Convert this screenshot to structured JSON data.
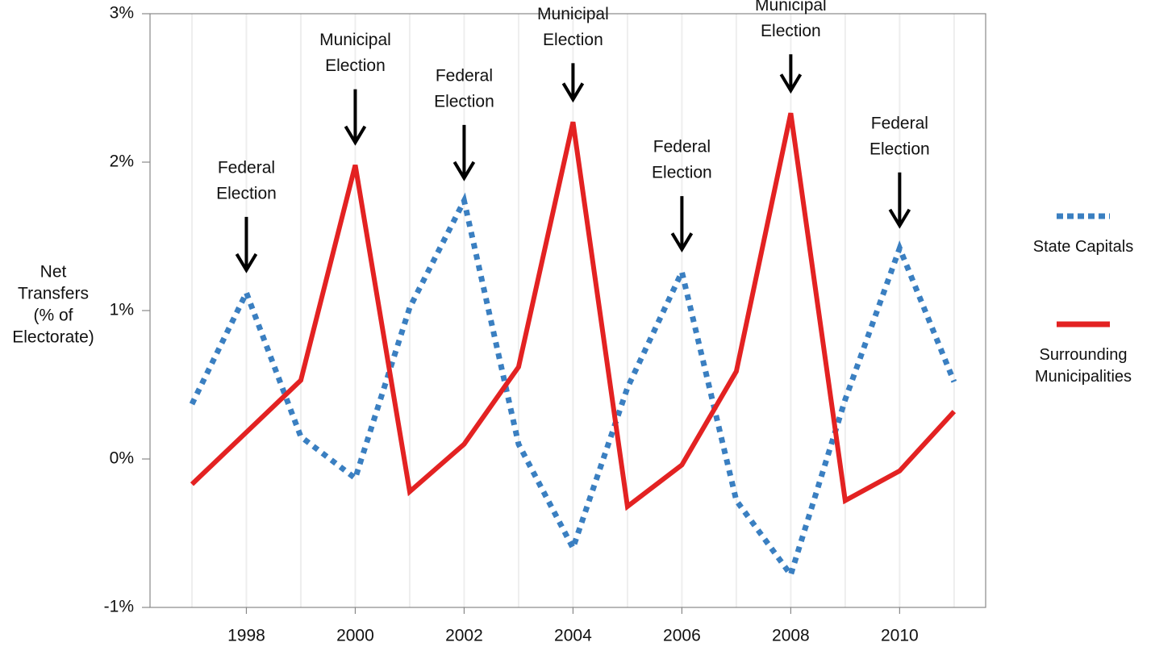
{
  "chart_data": {
    "type": "line",
    "ylabel": [
      "Net",
      "Transfers",
      "(% of",
      "Electorate)"
    ],
    "x": [
      1997,
      1998,
      1999,
      2000,
      2001,
      2002,
      2003,
      2004,
      2005,
      2006,
      2007,
      2008,
      2009,
      2010,
      2011
    ],
    "series": [
      {
        "name": "State Capitals",
        "color": "#3a7fc1",
        "dashed": true,
        "values": [
          0.37,
          1.12,
          0.15,
          -0.13,
          1.02,
          1.74,
          0.1,
          -0.6,
          0.48,
          1.26,
          -0.28,
          -0.78,
          0.4,
          1.42,
          0.52
        ]
      },
      {
        "name": "Surrounding Municipalities",
        "color": "#e32222",
        "dashed": false,
        "values": [
          -0.17,
          0.18,
          0.53,
          1.98,
          -0.22,
          0.1,
          0.62,
          2.27,
          -0.32,
          -0.04,
          0.59,
          2.33,
          -0.28,
          -0.08,
          0.32
        ]
      }
    ],
    "annotations": [
      {
        "x": 1998,
        "lines": [
          "Federal",
          "Election"
        ]
      },
      {
        "x": 2000,
        "lines": [
          "Municipal",
          "Election"
        ]
      },
      {
        "x": 2002,
        "lines": [
          "Federal",
          "Election"
        ]
      },
      {
        "x": 2004,
        "lines": [
          "Municipal",
          "Election"
        ]
      },
      {
        "x": 2006,
        "lines": [
          "Federal",
          "Election"
        ]
      },
      {
        "x": 2008,
        "lines": [
          "Municipal",
          "Election"
        ]
      },
      {
        "x": 2010,
        "lines": [
          "Federal",
          "Election"
        ]
      }
    ],
    "xlim": [
      1996.23,
      2011.58
    ],
    "xticks": [
      1998,
      2000,
      2002,
      2004,
      2006,
      2008,
      2010
    ],
    "ylim": [
      -1,
      3
    ],
    "yticks": [
      {
        "value": -1,
        "label": "-1%"
      },
      {
        "value": 0,
        "label": "0%"
      },
      {
        "value": 1,
        "label": "1%"
      },
      {
        "value": 2,
        "label": "2%"
      },
      {
        "value": 3,
        "label": "3%"
      }
    ],
    "grid": true
  }
}
